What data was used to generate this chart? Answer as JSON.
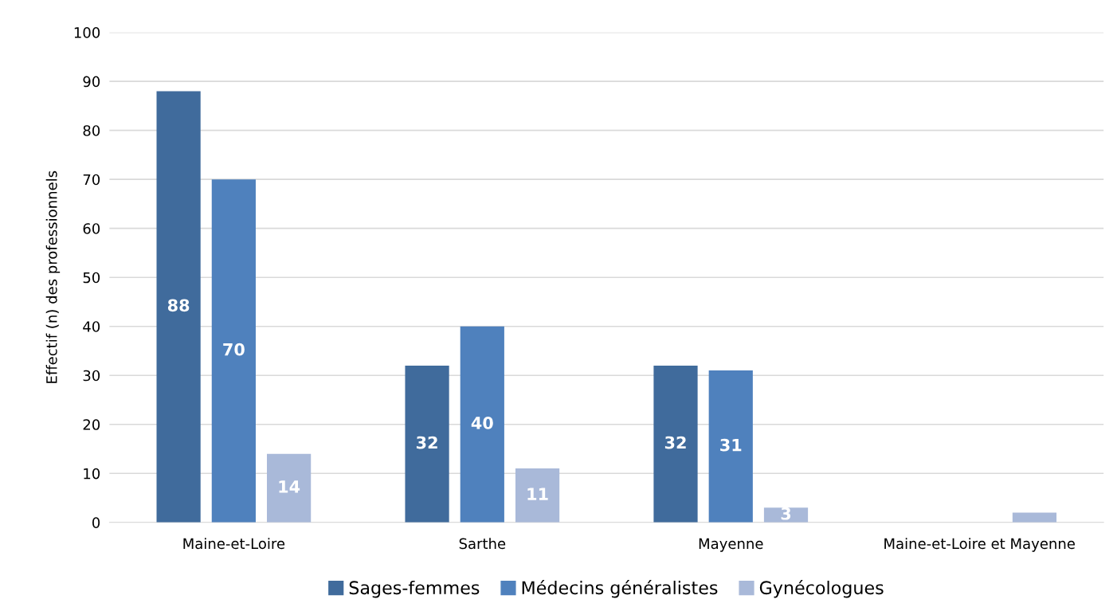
{
  "chart_data": {
    "type": "bar",
    "ylabel": "Effectif (n) des professionnels",
    "categories": [
      "Maine-et-Loire",
      "Sarthe",
      "Mayenne",
      "Maine-et-Loire et Mayenne"
    ],
    "series": [
      {
        "name": "Sages-femmes",
        "color": "#406b9c",
        "values": [
          88,
          32,
          32,
          null
        ],
        "value_labels": [
          "88",
          "32",
          "32",
          null
        ]
      },
      {
        "name": "Médecins généralistes",
        "color": "#4f81bd",
        "values": [
          70,
          40,
          31,
          null
        ],
        "value_labels": [
          "70",
          "40",
          "31",
          null
        ]
      },
      {
        "name": "Gynécologues",
        "color": "#a9b9d9",
        "values": [
          14,
          11,
          3,
          2
        ],
        "value_labels": [
          "14",
          "11",
          "3",
          null
        ]
      }
    ],
    "ylim": [
      0,
      100
    ],
    "yticks": [
      0,
      10,
      20,
      30,
      40,
      50,
      60,
      70,
      80,
      90,
      100
    ],
    "grid": "y",
    "legend": "bottom"
  }
}
